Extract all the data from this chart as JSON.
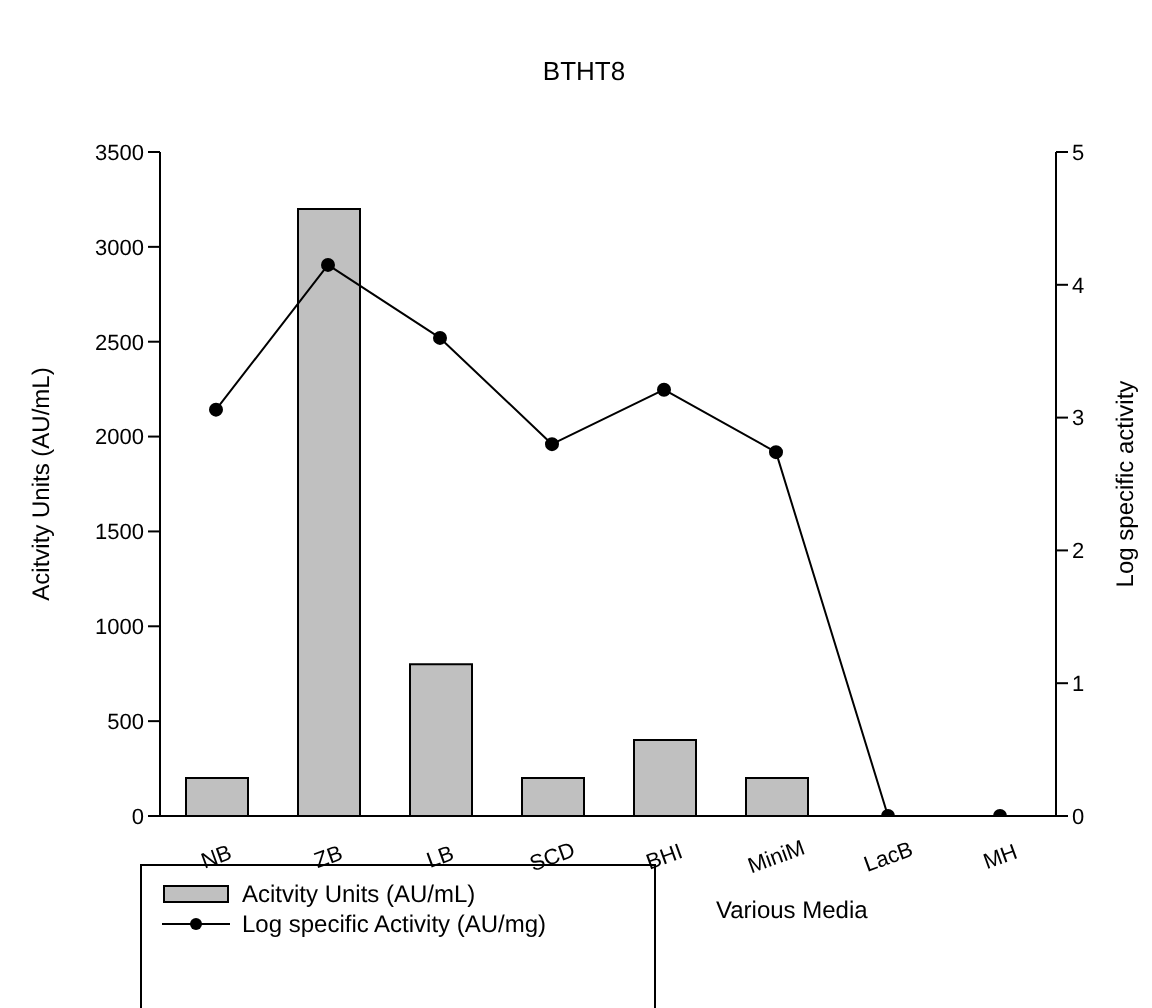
{
  "chart_data": {
    "type": "bar",
    "title": "BTHT8",
    "xlabel": "Various Media",
    "ylabel": "Acitvity Units (AU/mL)",
    "y2label": "Log specific activity",
    "categories": [
      "NB",
      "ZB",
      "LB",
      "SCD",
      "BHI",
      "MiniM",
      "LacB",
      "MH"
    ],
    "series": [
      {
        "name": "Acitvity Units (AU/mL)",
        "color": "#c0c0c0",
        "values": [
          200,
          3200,
          800,
          200,
          400,
          200,
          0,
          0
        ]
      },
      {
        "name": "Log specific Activity (AU/mg)",
        "type": "line",
        "axis": "y2",
        "color": "#000000",
        "marker": "circle",
        "values": [
          3.06,
          4.15,
          3.6,
          2.8,
          3.21,
          2.74,
          0,
          0
        ]
      }
    ],
    "ylim": [
      0,
      3500
    ],
    "yticks": [
      0,
      500,
      1000,
      1500,
      2000,
      2500,
      3000,
      3500
    ],
    "y2lim": [
      0,
      5
    ],
    "y2ticks": [
      0,
      1,
      2,
      3,
      4,
      5
    ],
    "grid": false,
    "legend": "bottom left"
  }
}
